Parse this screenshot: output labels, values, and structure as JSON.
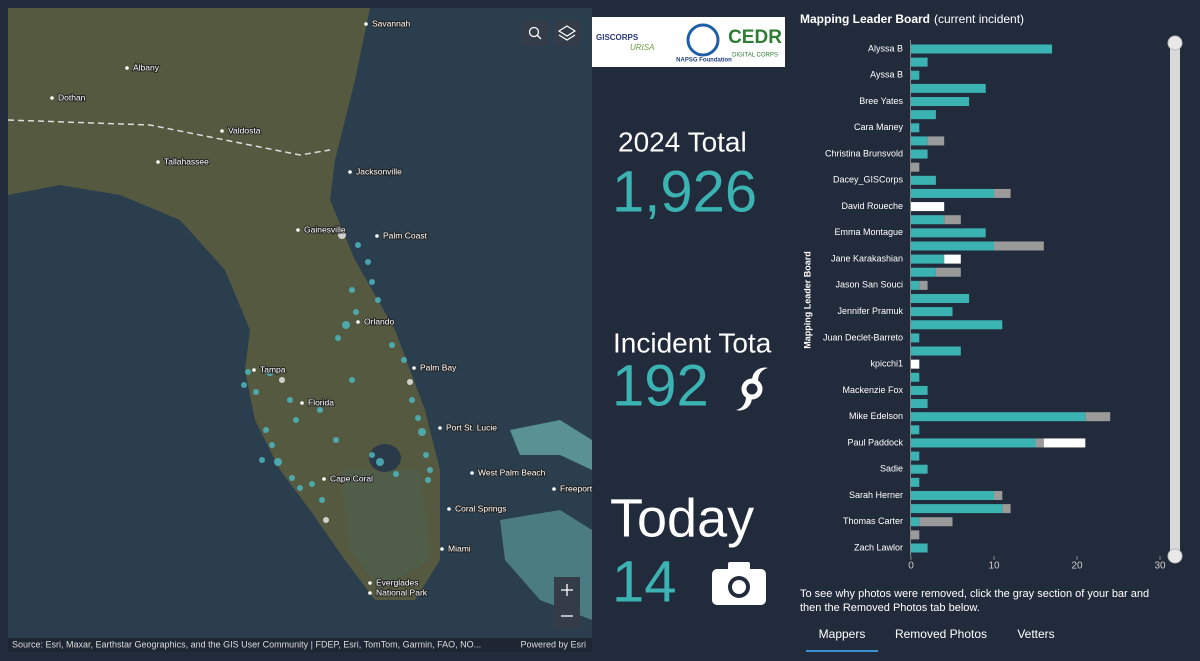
{
  "map": {
    "labels": [
      "Savannah",
      "Albany",
      "Dothan",
      "Valdosta",
      "Tallahassee",
      "Jacksonville",
      "Gainesville",
      "Palm Coast",
      "Orlando",
      "Tampa",
      "Florida",
      "Palm Bay",
      "Port St. Lucie",
      "West Palm Beach",
      "Cape Coral",
      "Coral Springs",
      "Miami",
      "Everglades",
      "National Park",
      "Freeport"
    ],
    "attribution": "Source: Esri, Maxar, Earthstar Geographics, and the GIS User Community | FDEP, Esri, TomTom, Garmin, FAO, NO...",
    "powered_by": "Powered by Esri"
  },
  "logos": [
    "GISCORPS",
    "URISA",
    "NAPSG Foundation",
    "CEDR",
    "DIGITAL CORPS"
  ],
  "stats": [
    {
      "label": "2024 Total",
      "value": "1,926"
    },
    {
      "label": "Incident Tota",
      "value": "192"
    },
    {
      "label": "Today",
      "value": "14"
    }
  ],
  "chart_data": {
    "type": "bar",
    "orientation": "horizontal",
    "stacked": true,
    "title": "Mapping Leader Board",
    "subtitle": "(current incident)",
    "y_label": "Mapping Leader Board",
    "categories": [
      "Alyssa B",
      null,
      "Ayssa B",
      null,
      "Bree Yates",
      null,
      "Cara Maney",
      null,
      "Christina Brunsvold",
      null,
      "Dacey_GISCorps",
      null,
      "David Roueche",
      null,
      "Emma Montague",
      null,
      "Jane Karakashian",
      null,
      "Jason San Souci",
      null,
      "Jennifer Pramuk",
      null,
      "Juan Declet-Barreto",
      null,
      "kpicchi1",
      null,
      "Mackenzie Fox",
      null,
      "Mike Edelson",
      null,
      "Paul Paddock",
      null,
      "Sadie",
      null,
      "Sarah Herner",
      null,
      "Thomas Carter",
      null,
      "Zach Lawlor"
    ],
    "series": [
      {
        "color": "#3bb3b3",
        "values": [
          17,
          2,
          1,
          9,
          7,
          3,
          1,
          2,
          2,
          0,
          3,
          10,
          0,
          4,
          9,
          10,
          4,
          3,
          1,
          7,
          5,
          11,
          1,
          6,
          0,
          1,
          2,
          2,
          21,
          1,
          15,
          1,
          2,
          1,
          10,
          11,
          1,
          0,
          2
        ]
      },
      {
        "color": "#9a9a9a",
        "values": [
          0,
          0,
          0,
          0,
          0,
          0,
          0,
          2,
          0,
          1,
          0,
          2,
          0,
          2,
          0,
          6,
          0,
          3,
          1,
          0,
          0,
          0,
          0,
          0,
          0,
          0,
          0,
          0,
          3,
          0,
          1,
          0,
          0,
          0,
          1,
          1,
          4,
          1,
          0
        ]
      },
      {
        "color": "#ffffff",
        "values": [
          0,
          0,
          0,
          0,
          0,
          0,
          0,
          0,
          0,
          0,
          0,
          0,
          4,
          0,
          0,
          0,
          2,
          0,
          0,
          0,
          0,
          0,
          0,
          0,
          1,
          0,
          0,
          0,
          0,
          0,
          5,
          0,
          0,
          0,
          0,
          0,
          0,
          0,
          0
        ]
      }
    ],
    "xlim": [
      0,
      30
    ],
    "xticks": [
      0,
      10,
      20,
      30
    ],
    "grid": false
  },
  "note": [
    "To see why photos were removed, click the gray section of your bar and",
    "then the Removed Photos tab below."
  ],
  "tabs": [
    "Mappers",
    "Removed Photos",
    "Vetters"
  ]
}
